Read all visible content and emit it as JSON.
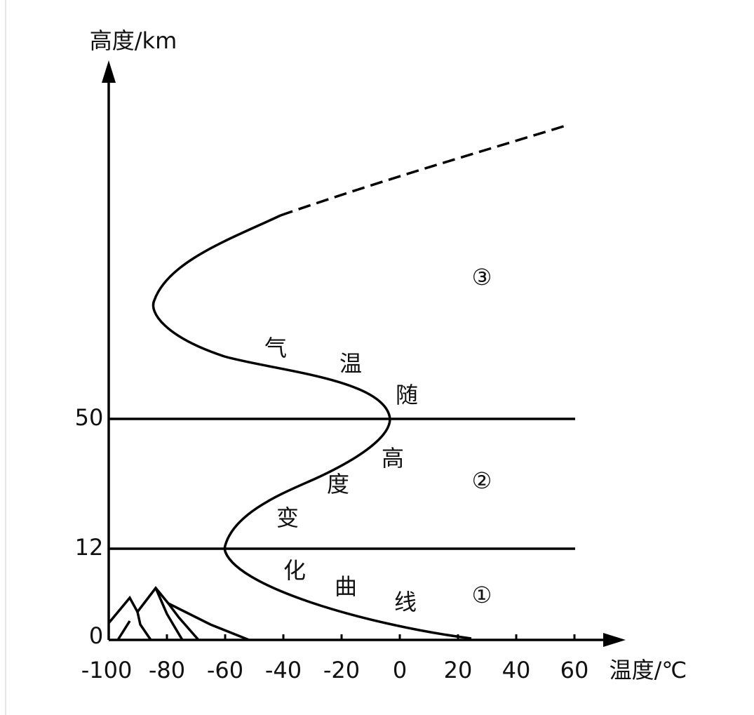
{
  "y_axis": {
    "label": "高度/km",
    "ticks": [
      0,
      12,
      50
    ]
  },
  "x_axis": {
    "label": "温度/℃",
    "ticks": [
      -100,
      -80,
      -60,
      -40,
      -20,
      0,
      20,
      40,
      60
    ]
  },
  "curve_caption": [
    "气",
    "温",
    "随",
    "高",
    "度",
    "变",
    "化",
    "曲",
    "线"
  ],
  "layers": [
    "①",
    "②",
    "③"
  ]
}
